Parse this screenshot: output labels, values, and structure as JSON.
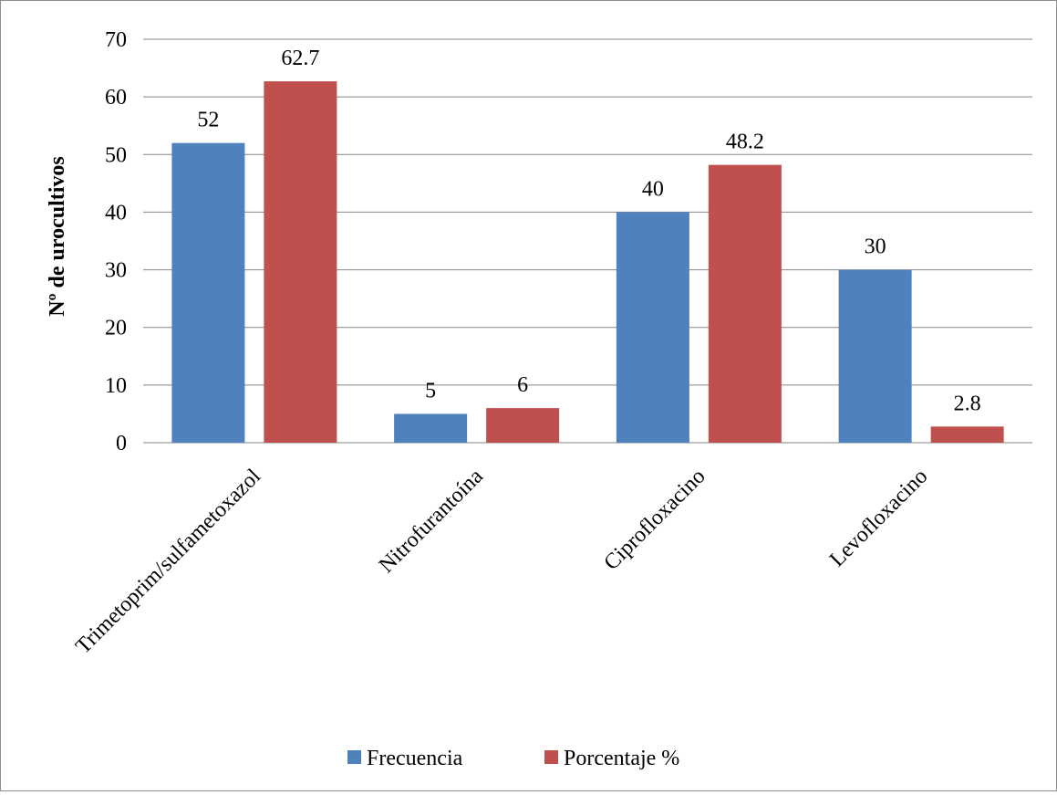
{
  "chart_data": {
    "type": "bar",
    "title": "",
    "xlabel": "",
    "ylabel": "Nº de urocultivos",
    "ylim": [
      0,
      70
    ],
    "yticks": [
      0,
      10,
      20,
      30,
      40,
      50,
      60,
      70
    ],
    "grid": true,
    "legend_position": "bottom",
    "categories": [
      "Trimetoprim/sulfametoxazol",
      "Nitrofurantoína",
      "Ciprofloxacino",
      "Levofloxacino"
    ],
    "series": [
      {
        "name": "Frecuencia",
        "color": "#4f81bd",
        "values": [
          52,
          5,
          40,
          30
        ]
      },
      {
        "name": "Porcentaje %",
        "color": "#c0504d",
        "values": [
          62.7,
          6,
          48.2,
          2.8
        ]
      }
    ]
  }
}
